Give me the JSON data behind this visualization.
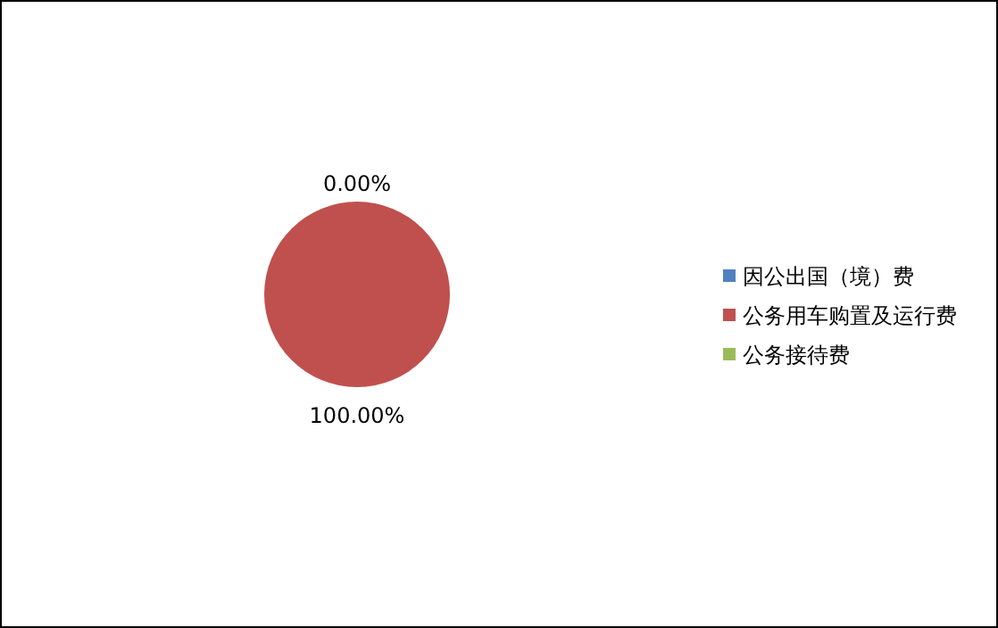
{
  "chart_data": {
    "type": "pie",
    "categories": [
      "因公出国（境）费",
      "公务用车购置及运行费",
      "公务接待费"
    ],
    "values": [
      0,
      100,
      0
    ],
    "colors": [
      "#4f81bd",
      "#c0504d",
      "#9bbb59"
    ],
    "value_labels": [
      "0.00%",
      "100.00%",
      null
    ],
    "legend": "right"
  }
}
